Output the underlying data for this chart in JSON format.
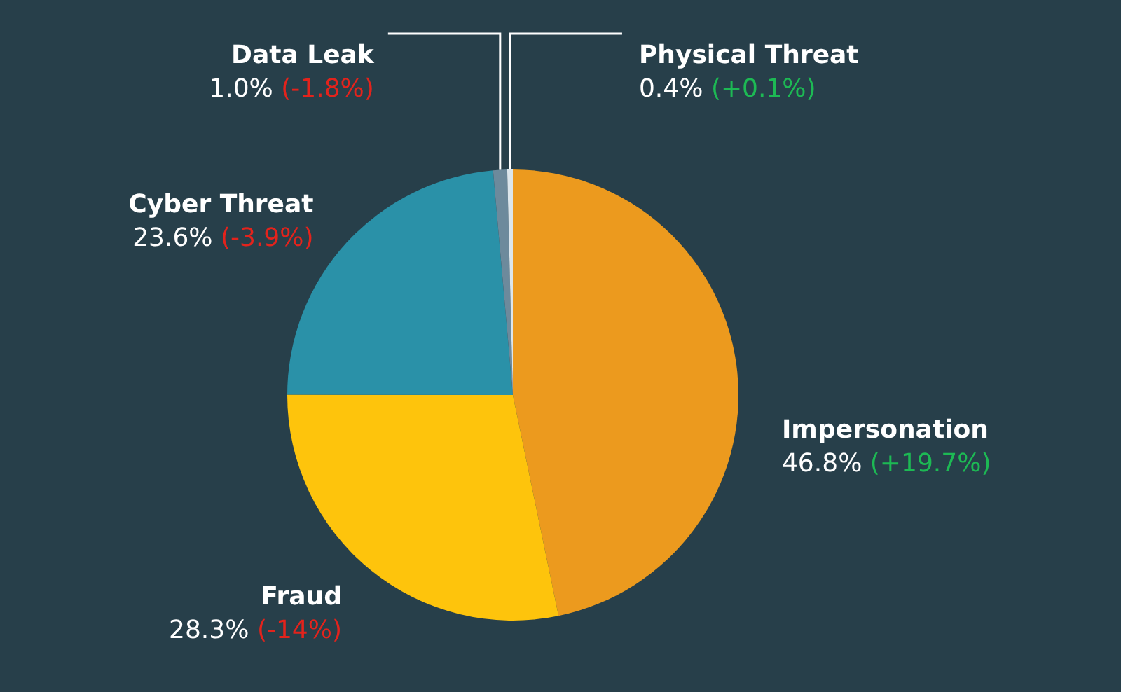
{
  "chart_data": {
    "type": "pie",
    "categories": [
      "Impersonation",
      "Fraud",
      "Cyber Threat",
      "Data Leak",
      "Physical Threat"
    ],
    "values": [
      46.8,
      28.3,
      23.6,
      1.0,
      0.4
    ],
    "value_labels": [
      "46.8%",
      "28.3%",
      "23.6%",
      "1.0%",
      "0.4%"
    ],
    "colors": [
      "#ec9a1e",
      "#fec40c",
      "#2a91a8",
      "#6d8a9c",
      "#dce6ec"
    ],
    "annotations": [
      {
        "text": "(+19.7%)",
        "x": "Impersonation"
      },
      {
        "text": "(-14%)",
        "x": "Fraud"
      },
      {
        "text": "(-3.9%)",
        "x": "Cyber Threat"
      },
      {
        "text": "(-1.8%)",
        "x": "Data Leak"
      },
      {
        "text": "(+0.1%)",
        "x": "Physical Threat"
      }
    ],
    "legend": false
  }
}
